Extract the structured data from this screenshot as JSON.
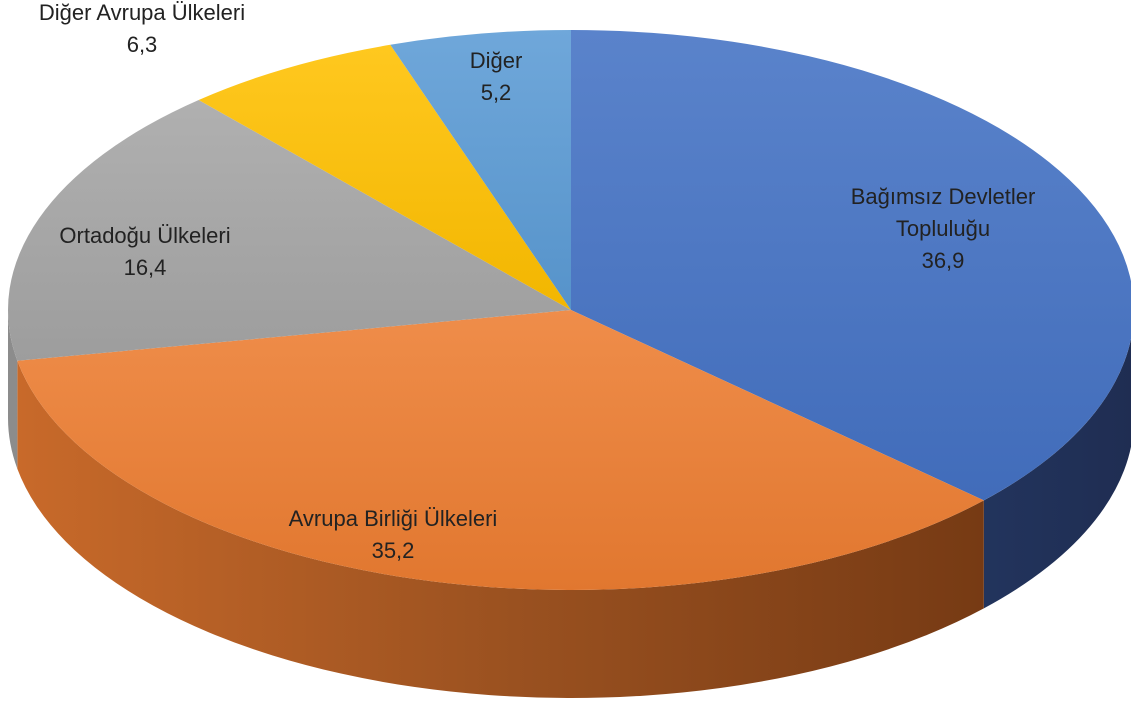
{
  "chart_data": {
    "type": "pie",
    "style": "3d",
    "slices": [
      {
        "label_lines": [
          "Bağımsız Devletler",
          "Topluluğu"
        ],
        "value": 36.9,
        "value_text": "36,9",
        "color": "#4472C4",
        "side_color": "#1F2D52"
      },
      {
        "label_lines": [
          "Avrupa Birliği Ülkeleri"
        ],
        "value": 35.2,
        "value_text": "35,2",
        "color": "#ED7D31",
        "side_color": "#6B3310"
      },
      {
        "label_lines": [
          "Ortadoğu Ülkeleri"
        ],
        "value": 16.4,
        "value_text": "16,4",
        "color": "#A5A5A5",
        "side_color": "#595959"
      },
      {
        "label_lines": [
          "Diğer Avrupa Ülkeleri"
        ],
        "value": 6.3,
        "value_text": "6,3",
        "color": "#FFC000",
        "side_color": "#8A6800"
      },
      {
        "label_lines": [
          "Diğer"
        ],
        "value": 5.2,
        "value_text": "5,2",
        "color": "#5B9BD5",
        "side_color": "#2E5A82"
      }
    ]
  }
}
